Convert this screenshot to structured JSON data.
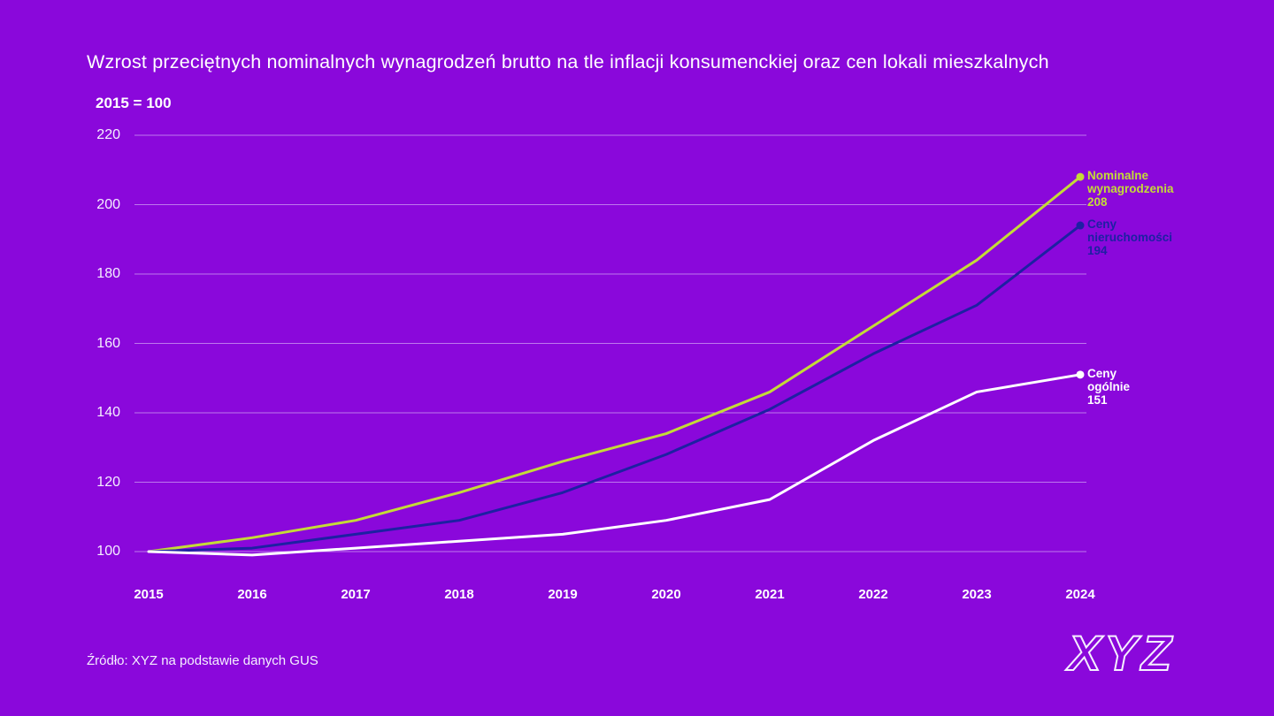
{
  "page": {
    "title": "Wzrost przeciętnych nominalnych wynagrodzeń brutto na tle inflacji konsumenckiej oraz cen lokali mieszkalnych",
    "subtitle": "2015 = 100",
    "source": "Źródło: XYZ na podstawie danych GUS",
    "logo": "XYZ"
  },
  "colors": {
    "background": "#8A08DB",
    "gridline": "rgba(240,230,255,0.5)",
    "text": "#FFFFFF",
    "wages_line": "#C4DB37",
    "property_line": "#1D20A3",
    "cpi_line": "#FFFFFF"
  },
  "chart_data": {
    "type": "line",
    "title": "Wzrost przeciętnych nominalnych wynagrodzeń brutto na tle inflacji konsumenckiej oraz cen lokali mieszkalnych",
    "index_note": "2015 = 100",
    "categories": [
      2015,
      2016,
      2017,
      2018,
      2019,
      2020,
      2021,
      2022,
      2023,
      2024
    ],
    "yticks": [
      100,
      120,
      140,
      160,
      180,
      200,
      220
    ],
    "ylim": [
      100,
      220
    ],
    "grid": "horizontal",
    "legend_position": "line-end-labels",
    "series": [
      {
        "name": "Nominalne wynagrodzenia",
        "label_lines": [
          "Nominalne",
          "wynagrodzenia"
        ],
        "end_value": 208,
        "color": "#C4DB37",
        "values": [
          100,
          104,
          109,
          117,
          126,
          134,
          146,
          165,
          184,
          208
        ]
      },
      {
        "name": "Ceny nieruchomości",
        "label_lines": [
          "Ceny",
          "nieruchomości"
        ],
        "end_value": 194,
        "color": "#1D20A3",
        "values": [
          100,
          101,
          105,
          109,
          117,
          128,
          141,
          157,
          171,
          194
        ]
      },
      {
        "name": "Ceny ogólnie",
        "label_lines": [
          "Ceny",
          "ogólnie"
        ],
        "end_value": 151,
        "color": "#FFFFFF",
        "values": [
          100,
          99,
          101,
          103,
          105,
          109,
          115,
          132,
          146,
          151
        ]
      }
    ]
  }
}
